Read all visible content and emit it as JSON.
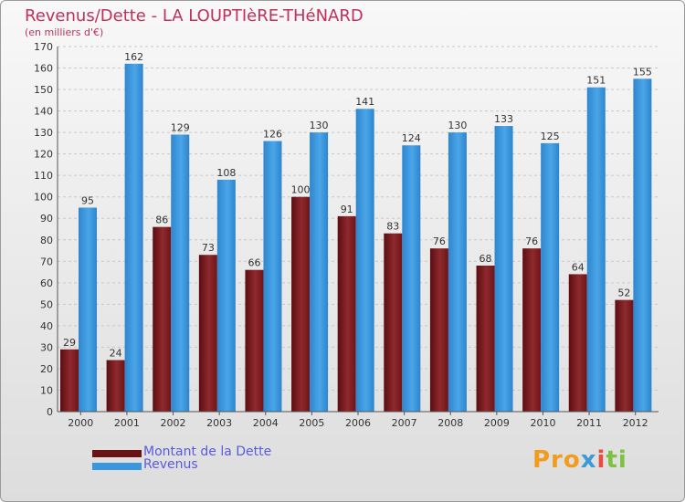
{
  "title": "Revenus/Dette - LA LOUPTIèRE-THéNARD",
  "subtitle": "(en milliers d'€)",
  "logo_text": "Proxiti",
  "chart_data": {
    "type": "bar",
    "categories": [
      "2000",
      "2001",
      "2002",
      "2003",
      "2004",
      "2005",
      "2006",
      "2007",
      "2008",
      "2009",
      "2010",
      "2011",
      "2012"
    ],
    "series": [
      {
        "name": "Montant de la Dette",
        "color": "#7a1a1e",
        "values": [
          29,
          24,
          86,
          73,
          66,
          100,
          91,
          83,
          76,
          68,
          76,
          64,
          52
        ]
      },
      {
        "name": "Revenus",
        "color": "#3b96dd",
        "values": [
          95,
          162,
          129,
          108,
          126,
          130,
          141,
          124,
          130,
          133,
          125,
          151,
          155
        ]
      }
    ],
    "ylim": [
      0,
      170
    ],
    "ytick_step": 10,
    "grid": true,
    "legend_position": "bottom-left"
  }
}
